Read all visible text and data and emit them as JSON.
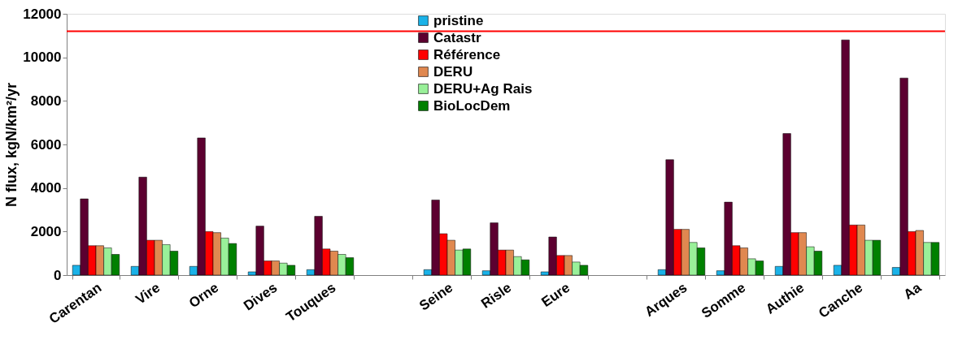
{
  "chart_data": {
    "type": "bar",
    "ylabel": "N flux, kgN/km²/yr",
    "categories": [
      "Carentan",
      "Vire",
      "Orne",
      "Dives",
      "Touques",
      null,
      "Seine",
      "Risle",
      "Eure",
      null,
      "Arques",
      "Somme",
      "Authie",
      "Canche",
      "Aa"
    ],
    "series": [
      {
        "name": "pristine",
        "color": "#1ab2e8",
        "values": [
          450,
          400,
          400,
          150,
          250,
          null,
          250,
          200,
          150,
          null,
          250,
          200,
          400,
          450,
          350
        ]
      },
      {
        "name": "Catastr",
        "color": "#5c0030",
        "values": [
          3500,
          4500,
          6300,
          2250,
          2700,
          null,
          3450,
          2400,
          1750,
          null,
          5300,
          3350,
          6500,
          10800,
          9050
        ]
      },
      {
        "name": "Référence",
        "color": "#ff0000",
        "values": [
          1350,
          1600,
          2000,
          650,
          1200,
          null,
          1900,
          1150,
          900,
          null,
          2100,
          1350,
          1950,
          2300,
          2000
        ]
      },
      {
        "name": "DERU",
        "color": "#e08850",
        "values": [
          1350,
          1600,
          1950,
          650,
          1100,
          null,
          1600,
          1150,
          900,
          null,
          2100,
          1250,
          1950,
          2300,
          2050
        ]
      },
      {
        "name": "DERU+Ag Rais",
        "color": "#99f099",
        "values": [
          1250,
          1400,
          1700,
          550,
          950,
          null,
          1150,
          850,
          600,
          null,
          1500,
          750,
          1300,
          1600,
          1500
        ]
      },
      {
        "name": "BioLocDem",
        "color": "#008000",
        "values": [
          950,
          1100,
          1450,
          450,
          800,
          null,
          1200,
          700,
          450,
          null,
          1250,
          650,
          1100,
          1600,
          1500
        ]
      }
    ],
    "ylim": [
      0,
      12000
    ],
    "yticks": [
      0,
      2000,
      4000,
      6000,
      8000,
      10000,
      12000
    ],
    "ref_lines": [
      {
        "axis": "y",
        "value": 11200,
        "color": "#ff0000"
      }
    ],
    "grid": false,
    "legend": "top"
  }
}
